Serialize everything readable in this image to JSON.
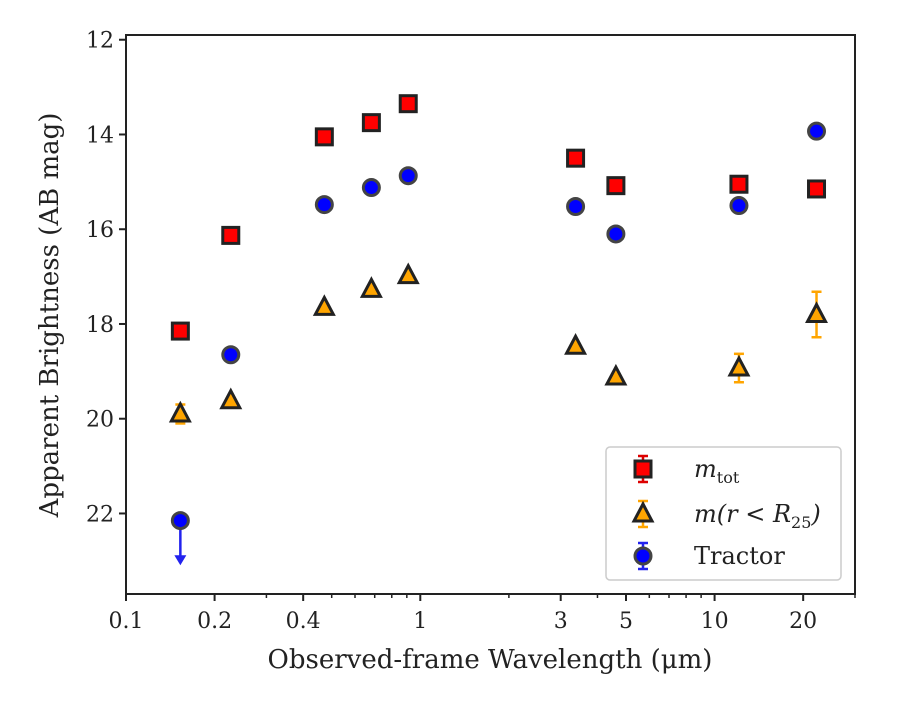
{
  "chart_data": {
    "type": "scatter",
    "xscale": "log",
    "xlabel": "Observed-frame Wavelength (μm)",
    "ylabel": "Apparent Brightness (AB mag)",
    "xlim": [
      0.1,
      30
    ],
    "ylim": [
      23.7,
      11.9
    ],
    "y_inverted": true,
    "grid": false,
    "legend_position": "lower-right",
    "x_ticks": [
      0.1,
      0.2,
      0.4,
      1,
      3,
      5,
      10,
      20
    ],
    "x_tick_labels": [
      "0.1",
      "0.2",
      "0.4",
      "1",
      "3",
      "5",
      "10",
      "20"
    ],
    "y_ticks": [
      12,
      14,
      16,
      18,
      20,
      22
    ],
    "y_tick_labels": [
      "12",
      "14",
      "16",
      "18",
      "20",
      "22"
    ],
    "series": [
      {
        "legend_label": "m_tot",
        "legend_display": "m",
        "legend_sub": "tot",
        "marker": "square",
        "color": "#ff0000",
        "error_color": "#dd0000",
        "points": [
          {
            "x": 0.153,
            "y": 18.15,
            "err": 0.05
          },
          {
            "x": 0.227,
            "y": 16.13,
            "err": 0.05
          },
          {
            "x": 0.472,
            "y": 14.05,
            "err": 0.05
          },
          {
            "x": 0.682,
            "y": 13.75,
            "err": 0.05
          },
          {
            "x": 0.91,
            "y": 13.35,
            "err": 0.05
          },
          {
            "x": 3.37,
            "y": 14.5,
            "err": 0.05
          },
          {
            "x": 4.62,
            "y": 15.08,
            "err": 0.05
          },
          {
            "x": 12.1,
            "y": 15.05,
            "err": 0.05
          },
          {
            "x": 22.2,
            "y": 15.15,
            "err": 0.05
          }
        ]
      },
      {
        "legend_label": "m(r < R_25)",
        "legend_display": "m(r < R",
        "legend_sub": "25",
        "legend_tail": ")",
        "marker": "triangle",
        "color": "#ffa500",
        "error_color": "#ffa500",
        "points": [
          {
            "x": 0.153,
            "y": 19.9,
            "err": 0.2
          },
          {
            "x": 0.227,
            "y": 19.62,
            "err": 0.05
          },
          {
            "x": 0.472,
            "y": 17.65,
            "err": 0.05
          },
          {
            "x": 0.682,
            "y": 17.27,
            "err": 0.05
          },
          {
            "x": 0.91,
            "y": 16.98,
            "err": 0.05
          },
          {
            "x": 3.37,
            "y": 18.47,
            "err": 0.05
          },
          {
            "x": 4.62,
            "y": 19.12,
            "err": 0.05
          },
          {
            "x": 12.1,
            "y": 18.93,
            "err": 0.3
          },
          {
            "x": 22.2,
            "y": 17.8,
            "err": 0.48
          }
        ]
      },
      {
        "legend_label": "Tractor",
        "legend_display": "Tractor",
        "marker": "circle",
        "color": "#0000ff",
        "error_color": "#2222ee",
        "points": [
          {
            "x": 0.153,
            "y": 22.15,
            "err": 0,
            "upper_limit": true,
            "arrow_to": 23.05
          },
          {
            "x": 0.227,
            "y": 18.65,
            "err": 0.05
          },
          {
            "x": 0.472,
            "y": 15.48,
            "err": 0.05
          },
          {
            "x": 0.682,
            "y": 15.12,
            "err": 0.05
          },
          {
            "x": 0.91,
            "y": 14.87,
            "err": 0.05
          },
          {
            "x": 3.37,
            "y": 15.52,
            "err": 0.05
          },
          {
            "x": 4.62,
            "y": 16.1,
            "err": 0.05
          },
          {
            "x": 12.1,
            "y": 15.5,
            "err": 0.05
          },
          {
            "x": 22.2,
            "y": 13.93,
            "err": 0.05
          }
        ]
      }
    ]
  }
}
